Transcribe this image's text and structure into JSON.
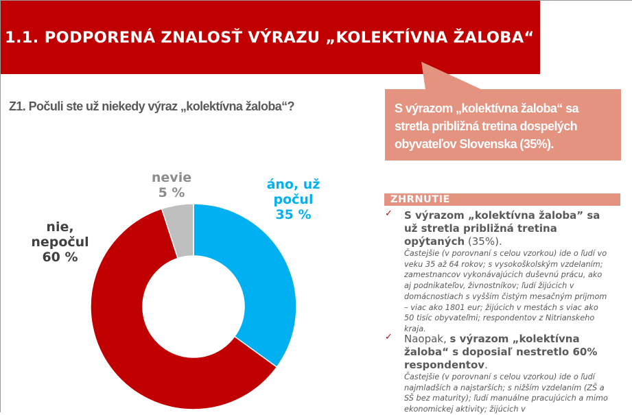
{
  "header": {
    "title": "1.1. PODPORENÁ ZNALOSŤ VÝRAZU „KOLEKTÍVNA ŽALOBA“"
  },
  "question": "Z1. Počuli ste už niekedy výraz „kolektívna žaloba“?",
  "callout": "S výrazom „kolektívna žaloba“ sa stretla približná tretina dospelých obyvateľov Slovenska (35%).",
  "chart_data": {
    "type": "pie",
    "donut": true,
    "title": "Z1. Počuli ste už niekedy výraz „kolektívna žaloba“?",
    "categories": [
      "áno, už počul",
      "nie, nepočul",
      "nevie"
    ],
    "values": [
      35,
      60,
      5
    ],
    "labels": [
      {
        "line1": "áno, už",
        "line2": "počul",
        "line3": "35 %"
      },
      {
        "line1": "nie,",
        "line2": "nepočul",
        "line3": "60 %"
      },
      {
        "line1": "nevie",
        "line2": "5 %"
      }
    ],
    "colors": [
      "#00b0f0",
      "#c00000",
      "#bfbfbf"
    ]
  },
  "summary": {
    "heading": "ZHRNUTIE",
    "items": [
      {
        "bold": "S výrazom „kolektívna žaloba” sa už stretla približná tretina opýtaných",
        "normal_after": " (35%).",
        "detail": "Častejšie (v porovnaní s celou vzorkou) ide o ľudí vo veku 35 až 64 rokov; s vysokoškolským vzdelaním; zamestnancov vykonávajúcich duševnú prácu, ako aj podnikateľov, živnostníkov; ľudí žijúcich v domácnostiach s vyšším čistým mesačným príjmom – viac ako 1801 eur; žijúcich v mestách s viac ako 50 tisíc obyvateľmi; respondentov z Nitrianskeho kraja."
      },
      {
        "normal_before": "Naopak, ",
        "bold": "s výrazom „kolektívna žaloba“ s doposiaľ nestretlo 60% respondentov",
        "normal_after": ".",
        "detail": "Častejšie (v porovnaní s celou vzorkou) ide o ľudí najmladších a najstarších; s nižším vzdelaním (ZŠ a SŠ bez maturity); ľudí manuálne pracujúcich a mimo ekonomickej aktivity; žijúcich v"
      }
    ]
  }
}
